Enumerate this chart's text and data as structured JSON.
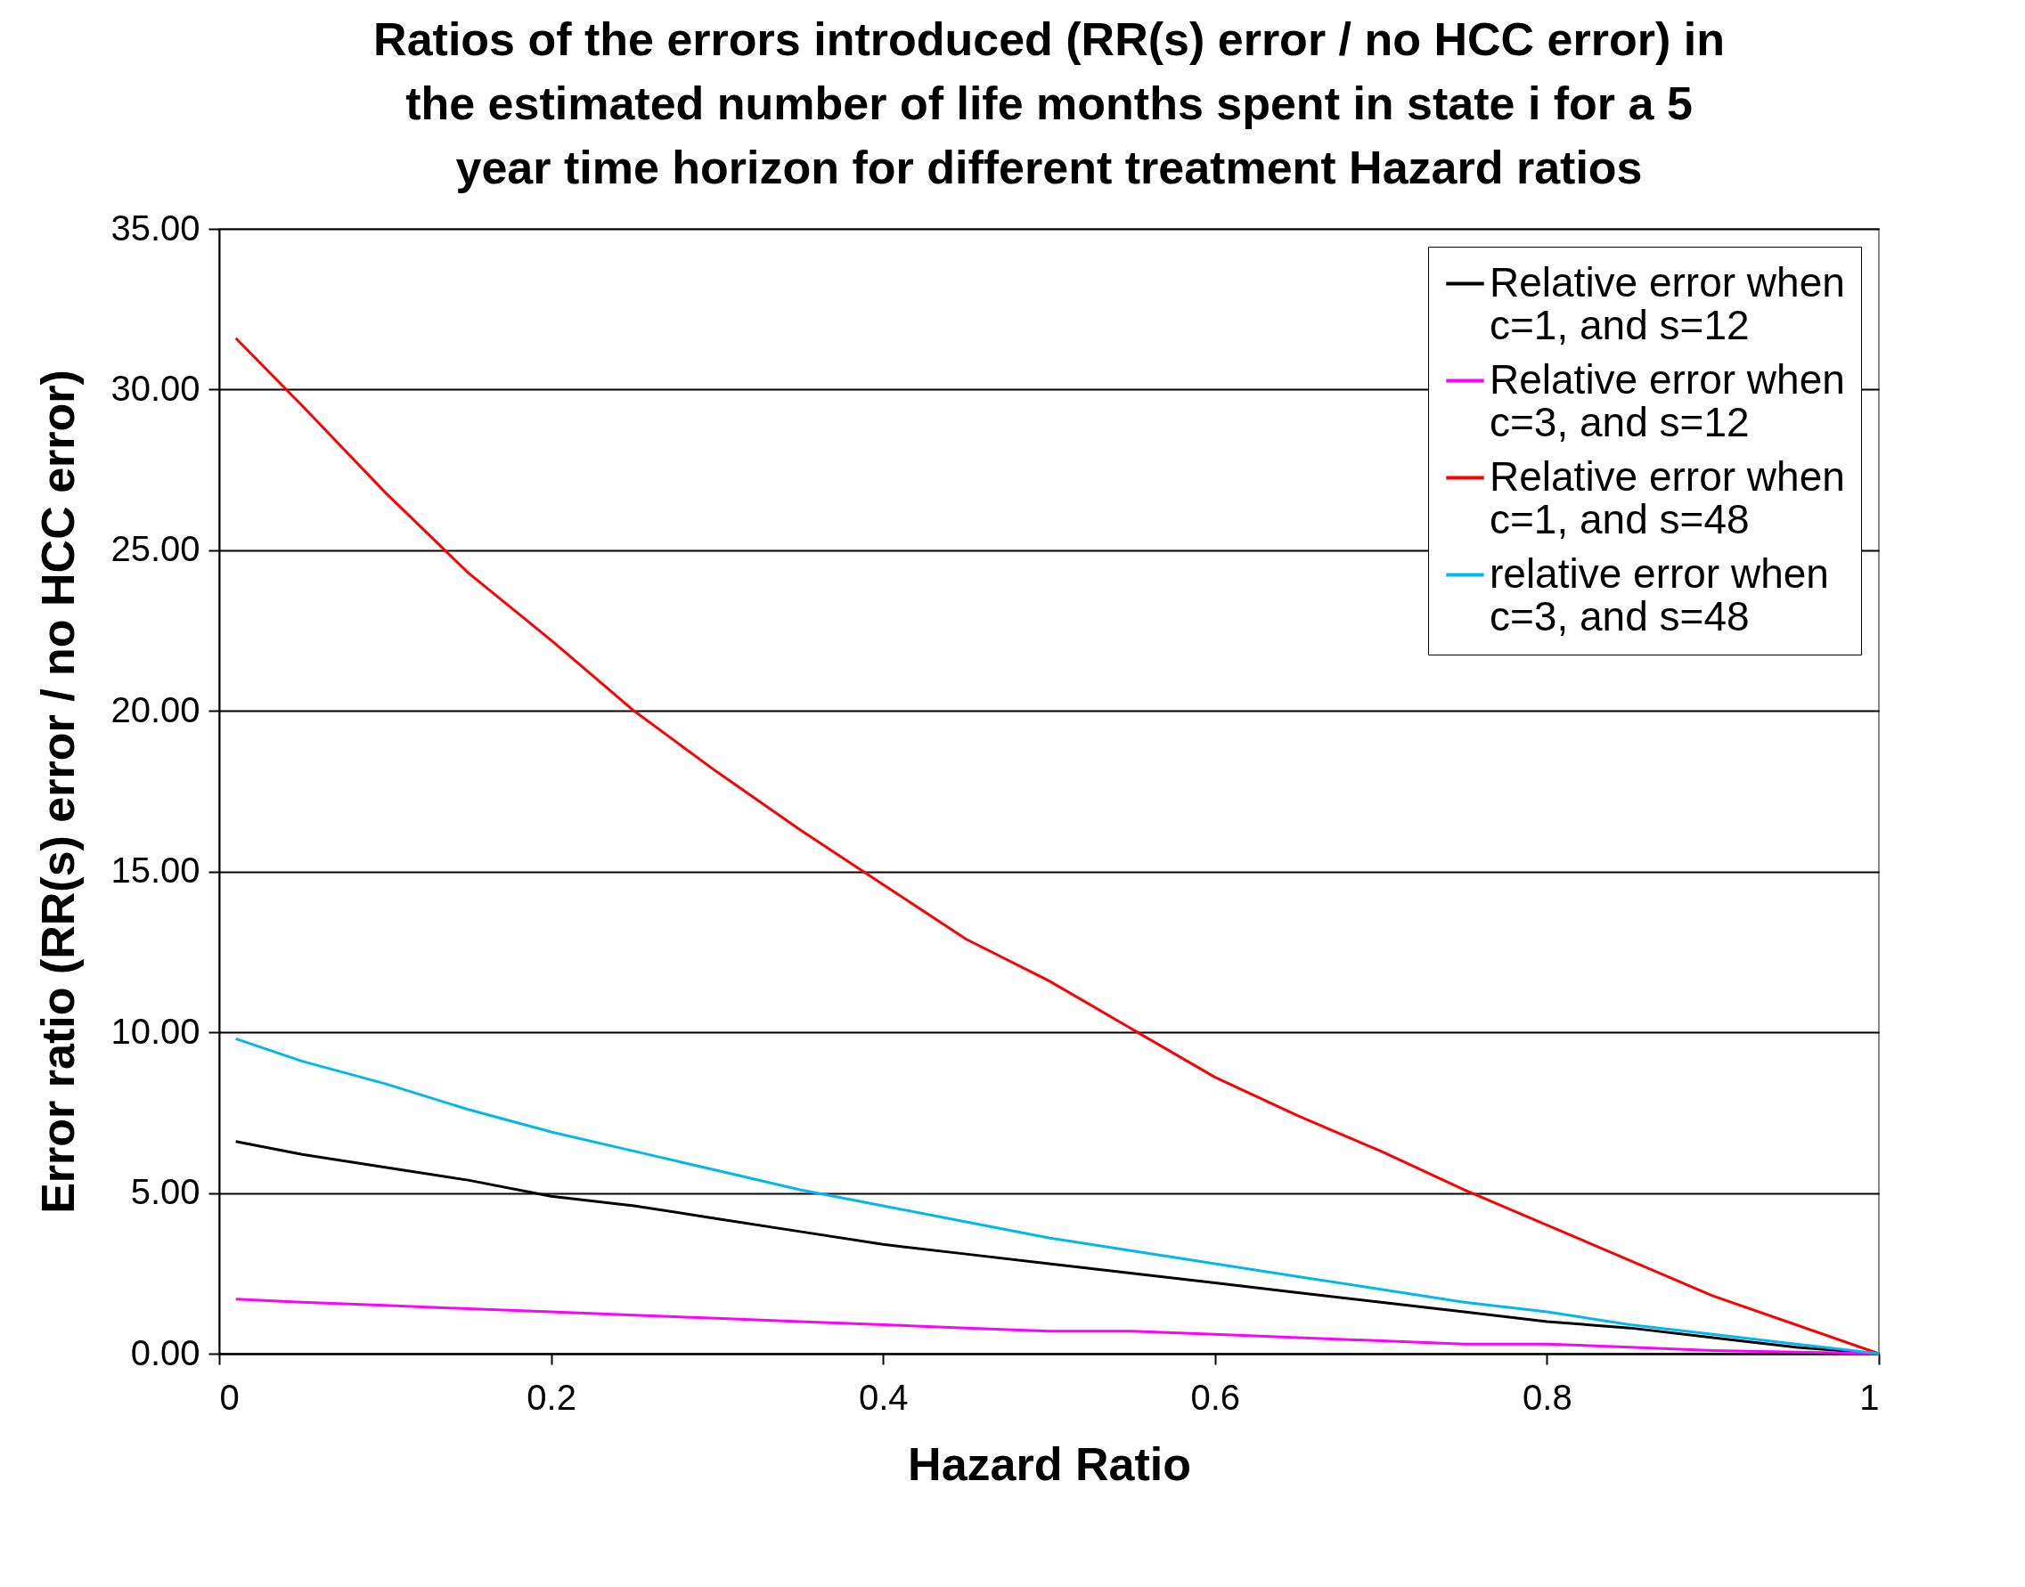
{
  "chart_data": {
    "type": "line",
    "title": "Ratios of the errors introduced (RR(s) error / no HCC error) in the estimated number of life months spent in state i for a 5 year time horizon for different treatment Hazard ratios",
    "xlabel": "Hazard Ratio",
    "ylabel": "Error ratio (RR(s) error / no HCC error)",
    "x": [
      0.01,
      0.05,
      0.1,
      0.15,
      0.2,
      0.25,
      0.3,
      0.35,
      0.4,
      0.45,
      0.5,
      0.55,
      0.6,
      0.65,
      0.7,
      0.75,
      0.8,
      0.85,
      0.9,
      0.95,
      1.0
    ],
    "series": [
      {
        "name": "Relative error when c=1, and s=12",
        "color": "#000000",
        "values": [
          6.6,
          6.2,
          5.8,
          5.4,
          4.9,
          4.6,
          4.2,
          3.8,
          3.4,
          3.1,
          2.8,
          2.5,
          2.2,
          1.9,
          1.6,
          1.3,
          1.0,
          0.8,
          0.5,
          0.2,
          0
        ]
      },
      {
        "name": "Relative error when c=3, and s=12",
        "color": "#ff00ff",
        "values": [
          1.7,
          1.6,
          1.5,
          1.4,
          1.3,
          1.2,
          1.1,
          1.0,
          0.9,
          0.8,
          0.7,
          0.7,
          0.6,
          0.5,
          0.4,
          0.3,
          0.3,
          0.2,
          0.1,
          0.05,
          0
        ]
      },
      {
        "name": "Relative error when c=1, and s=48",
        "color": "#ff0000",
        "values": [
          31.6,
          29.5,
          26.8,
          24.3,
          22.2,
          20.0,
          18.1,
          16.3,
          14.6,
          12.9,
          11.6,
          10.1,
          8.6,
          7.4,
          6.3,
          5.1,
          4.0,
          2.9,
          1.8,
          0.9,
          0
        ]
      },
      {
        "name": "relative error when c=3, and s=48",
        "color": "#00b8f0",
        "values": [
          9.8,
          9.1,
          8.4,
          7.6,
          6.9,
          6.3,
          5.7,
          5.1,
          4.6,
          4.1,
          3.6,
          3.2,
          2.8,
          2.4,
          2.0,
          1.6,
          1.3,
          0.9,
          0.6,
          0.3,
          0
        ]
      }
    ],
    "xlim": [
      0,
      1
    ],
    "xticks": [
      0,
      0.2,
      0.4,
      0.6,
      0.8,
      1
    ],
    "ylim": [
      0,
      35
    ],
    "yticks": [
      {
        "value": 0,
        "label": "0.00"
      },
      {
        "value": 5,
        "label": "5.00"
      },
      {
        "value": 10,
        "label": "10.00"
      },
      {
        "value": 15,
        "label": "15.00"
      },
      {
        "value": 20,
        "label": "20.00"
      },
      {
        "value": 25,
        "label": "25.00"
      },
      {
        "value": 30,
        "label": "30.00"
      },
      {
        "value": 35,
        "label": "35.00"
      }
    ],
    "grid": "y",
    "legend": "top right",
    "marker": "none",
    "line_style": "solid"
  }
}
